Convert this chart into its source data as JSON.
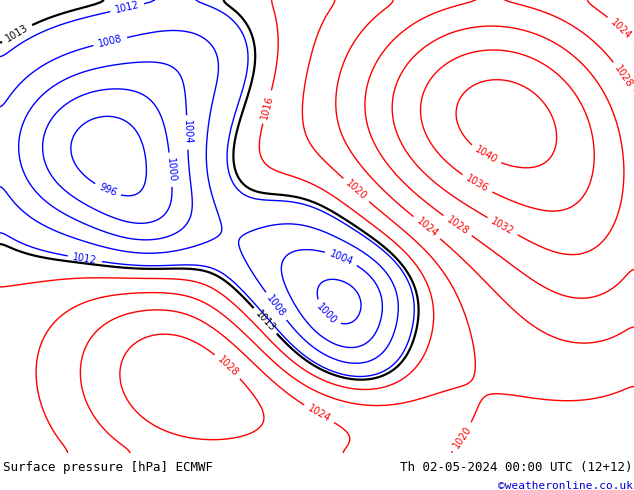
{
  "title_left": "Surface pressure [hPa] ECMWF",
  "title_right": "Th 02-05-2024 00:00 UTC (12+12)",
  "copyright": "©weatheronline.co.uk",
  "land_color": "#c8ddb0",
  "ocean_color": "#d0e4f0",
  "coast_color": "#707070",
  "border_color": "#909090",
  "bottom_bar_color": "#d8d8d8",
  "title_fontsize": 9,
  "copyright_color": "#0000cc",
  "figsize": [
    6.34,
    4.9
  ],
  "dpi": 100,
  "lon_min": -28,
  "lon_max": 45,
  "lat_min": 27,
  "lat_max": 73,
  "contour_lw": 1.0,
  "black_lw": 1.6,
  "label_fontsize": 7
}
